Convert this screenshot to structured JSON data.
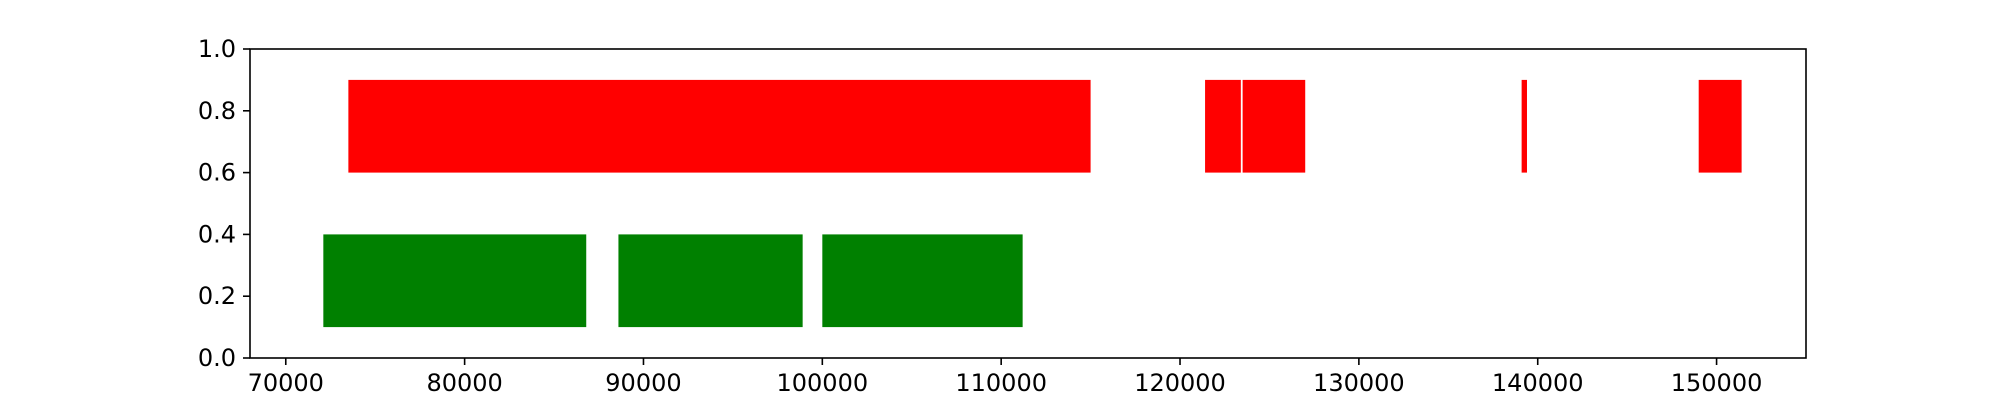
{
  "chart_data": {
    "type": "broken_barh",
    "title": "",
    "xlabel": "",
    "ylabel": "",
    "xlim": [
      68000,
      155000
    ],
    "ylim": [
      0.0,
      1.0
    ],
    "grid": false,
    "x_ticks": [
      70000,
      80000,
      90000,
      100000,
      110000,
      120000,
      130000,
      140000,
      150000
    ],
    "x_tick_labels": [
      "70000",
      "80000",
      "90000",
      "100000",
      "110000",
      "120000",
      "130000",
      "140000",
      "150000"
    ],
    "y_ticks": [
      0.0,
      0.2,
      0.4,
      0.6,
      0.8,
      1.0
    ],
    "y_tick_labels": [
      "0.0",
      "0.2",
      "0.4",
      "0.6",
      "0.8",
      "1.0"
    ],
    "series": [
      {
        "color": "#ff0000",
        "y_range": [
          0.6,
          0.9
        ],
        "intervals": [
          [
            73500,
            115000
          ],
          [
            121400,
            123400
          ],
          [
            123500,
            127000
          ],
          [
            139100,
            139400
          ],
          [
            149000,
            151400
          ]
        ]
      },
      {
        "color": "#008000",
        "y_range": [
          0.1,
          0.4
        ],
        "intervals": [
          [
            72100,
            86800
          ],
          [
            88600,
            98900
          ],
          [
            100000,
            111200
          ]
        ]
      }
    ]
  }
}
